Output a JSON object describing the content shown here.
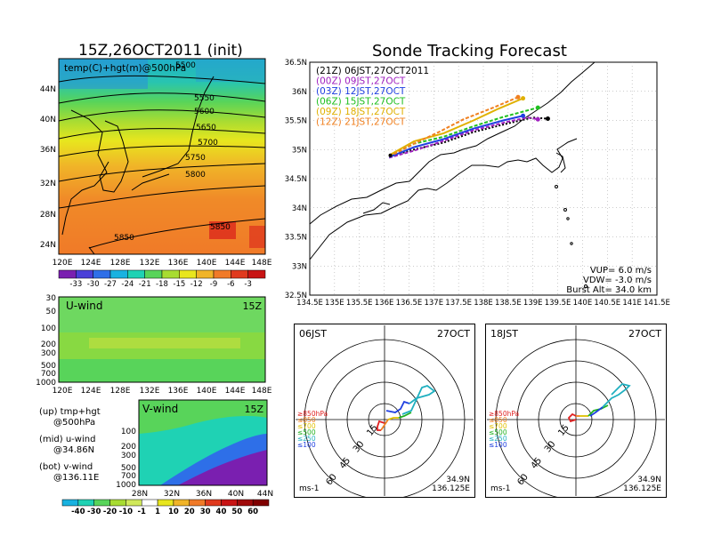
{
  "map_panel": {
    "title": "15Z,26OCT2011 (init)",
    "subtitle": "temp(C)+hgt(m)@500hPa",
    "lat_labels": [
      "44N",
      "40N",
      "36N",
      "32N",
      "28N",
      "24N"
    ],
    "lon_labels": [
      "120E",
      "124E",
      "128E",
      "132E",
      "136E",
      "140E",
      "144E",
      "148E"
    ],
    "contour_labels": [
      "5500",
      "5550",
      "5600",
      "5650",
      "5700",
      "5750",
      "5800",
      "5850",
      "5850"
    ],
    "colorbar_labels": [
      "-33",
      "-30",
      "-27",
      "-24",
      "-21",
      "-18",
      "-15",
      "-12",
      "-9",
      "-6",
      "-3"
    ],
    "colorbar_colors": [
      "#7a1fb0",
      "#4a3fd8",
      "#2e6fe8",
      "#19b2e0",
      "#1fd2b4",
      "#58d45a",
      "#a8dc32",
      "#e8e61e",
      "#f0b428",
      "#f07a28",
      "#e03a1e",
      "#c81414"
    ]
  },
  "uwind_panel": {
    "title": "U-wind",
    "time": "15Z",
    "y_labels": [
      "30",
      "50",
      "100",
      "200",
      "300",
      "500",
      "700",
      "1000"
    ],
    "x_labels": [
      "120E",
      "124E",
      "128E",
      "132E",
      "136E",
      "140E",
      "144E",
      "148E"
    ]
  },
  "vwind_panel": {
    "title": "V-wind",
    "time": "15Z",
    "y_labels": [
      "100",
      "200",
      "300",
      "500",
      "700",
      "1000"
    ],
    "x_labels": [
      "28N",
      "32N",
      "36N",
      "40N",
      "44N"
    ]
  },
  "notes": [
    [
      "(up) tmp+hgt",
      "@500hPa"
    ],
    [
      "(mid) u-wind",
      "@34.86N"
    ],
    [
      "(bot) v-wind",
      "@136.11E"
    ]
  ],
  "wind_colorbar": {
    "labels": [
      "-40",
      "-30",
      "-20",
      "-10",
      "-1",
      "1",
      "10",
      "20",
      "30",
      "40",
      "50",
      "60"
    ],
    "colors": [
      "#19b2e0",
      "#1fd2b4",
      "#58d45a",
      "#a8dc32",
      "#d0e85a",
      "#ffffff",
      "#e8e61e",
      "#f0b428",
      "#f07a28",
      "#e03a1e",
      "#c81414",
      "#a00a0a",
      "#800000"
    ]
  },
  "tracking": {
    "title": "Sonde Tracking Forecast",
    "legend": [
      {
        "label": "(21Z)  06JST,27OCT2011",
        "color": "#000000"
      },
      {
        "label": "(00Z)  09JST,27OCT",
        "color": "#a020c0"
      },
      {
        "label": "(03Z)  12JST,27OCT",
        "color": "#2040e0"
      },
      {
        "label": "(06Z)  15JST,27OCT",
        "color": "#20c020"
      },
      {
        "label": "(09Z)  18JST,27OCT",
        "color": "#e0b000"
      },
      {
        "label": "(12Z)  21JST,27OCT",
        "color": "#f08020"
      }
    ],
    "lat_labels": [
      "36.5N",
      "36N",
      "35.5N",
      "35N",
      "34.5N",
      "34N",
      "33.5N",
      "33N",
      "32.5N"
    ],
    "lon_labels": [
      "134.5E",
      "135E",
      "135.5E",
      "136E",
      "136.5E",
      "137E",
      "137.5E",
      "138E",
      "138.5E",
      "139E",
      "139.5E",
      "140E",
      "140.5E",
      "141E",
      "141.5E"
    ],
    "params": [
      "VUP=  6.0  m/s",
      "VDW= -3.0  m/s",
      "Burst Alt=  34.0  km"
    ]
  },
  "chart_data": [
    {
      "type": "heatmap",
      "title": "15Z,26OCT2011 (init)",
      "subtitle": "temp(C)+hgt(m)@500hPa",
      "xlim": [
        118,
        150
      ],
      "ylim": [
        22,
        48
      ],
      "contours_m": [
        5500,
        5550,
        5600,
        5650,
        5700,
        5750,
        5800,
        5850
      ],
      "colorbar_C": [
        -33,
        -30,
        -27,
        -24,
        -21,
        -18,
        -15,
        -12,
        -9,
        -6,
        -3
      ]
    },
    {
      "type": "line",
      "title": "Sonde Tracking Forecast",
      "xlim": [
        134.5,
        141.5
      ],
      "ylim": [
        32.5,
        36.5
      ],
      "launch": {
        "lon": 136.125,
        "lat": 34.9
      },
      "series": [
        {
          "name": "(21Z)  06JST,27OCT2011",
          "x": [
            136.1,
            136.6,
            137.2,
            137.8,
            138.5,
            139.0,
            139.3
          ],
          "y": [
            34.88,
            35.0,
            35.12,
            35.3,
            35.45,
            35.55,
            35.53
          ]
        },
        {
          "name": "(00Z)  09JST,27OCT",
          "x": [
            136.1,
            136.6,
            137.2,
            137.8,
            138.5,
            138.9,
            139.1
          ],
          "y": [
            34.86,
            34.98,
            35.15,
            35.33,
            35.48,
            35.55,
            35.52
          ]
        },
        {
          "name": "(03Z)  12JST,27OCT",
          "x": [
            136.1,
            136.6,
            137.2,
            137.8,
            138.4,
            138.8
          ],
          "y": [
            34.87,
            35.04,
            35.18,
            35.36,
            35.5,
            35.58
          ]
        },
        {
          "name": "(06Z)  15JST,27OCT",
          "x": [
            136.1,
            136.6,
            137.2,
            137.8,
            138.4,
            139.1
          ],
          "y": [
            34.88,
            35.1,
            35.22,
            35.4,
            35.56,
            35.72
          ]
        },
        {
          "name": "(09Z)  18JST,27OCT",
          "x": [
            136.1,
            136.6,
            137.2,
            137.8,
            138.3,
            138.8
          ],
          "y": [
            34.9,
            35.14,
            35.28,
            35.5,
            35.7,
            35.88
          ]
        },
        {
          "name": "(12Z)  21JST,27OCT",
          "x": [
            136.1,
            136.6,
            137.1,
            137.6,
            138.2,
            138.7
          ],
          "y": [
            34.88,
            35.1,
            35.3,
            35.52,
            35.72,
            35.9
          ]
        }
      ],
      "params": {
        "VUP_m_s": 6.0,
        "VDW_m_s": -3.0,
        "burst_alt_km": 34.0
      }
    }
  ],
  "hodo_left": {
    "time": "06JST",
    "date": "27OCT",
    "rings": [
      "15",
      "30",
      "45",
      "60"
    ],
    "units": "ms-1",
    "lat": "34.9N",
    "lon": "136.125E",
    "levels": [
      {
        "label": "≥850hPa",
        "color": "#e02020"
      },
      {
        "label": "≤850",
        "color": "#f08020"
      },
      {
        "label": "≤700",
        "color": "#e0c000"
      },
      {
        "label": "≤500",
        "color": "#20b020"
      },
      {
        "label": "≤250",
        "color": "#20b0c0"
      },
      {
        "label": "≤100",
        "color": "#2040e0"
      }
    ]
  },
  "hodo_right": {
    "time": "18JST",
    "date": "27OCT",
    "rings": [
      "15",
      "30",
      "45",
      "60"
    ],
    "units": "ms-1",
    "lat": "34.9N",
    "lon": "136.125E",
    "levels": [
      {
        "label": "≥850hPa",
        "color": "#e02020"
      },
      {
        "label": "≤850",
        "color": "#f08020"
      },
      {
        "label": "≤700",
        "color": "#e0c000"
      },
      {
        "label": "≤500",
        "color": "#20b020"
      },
      {
        "label": "≤250",
        "color": "#20b0c0"
      },
      {
        "label": "≤100",
        "color": "#2040e0"
      }
    ]
  }
}
